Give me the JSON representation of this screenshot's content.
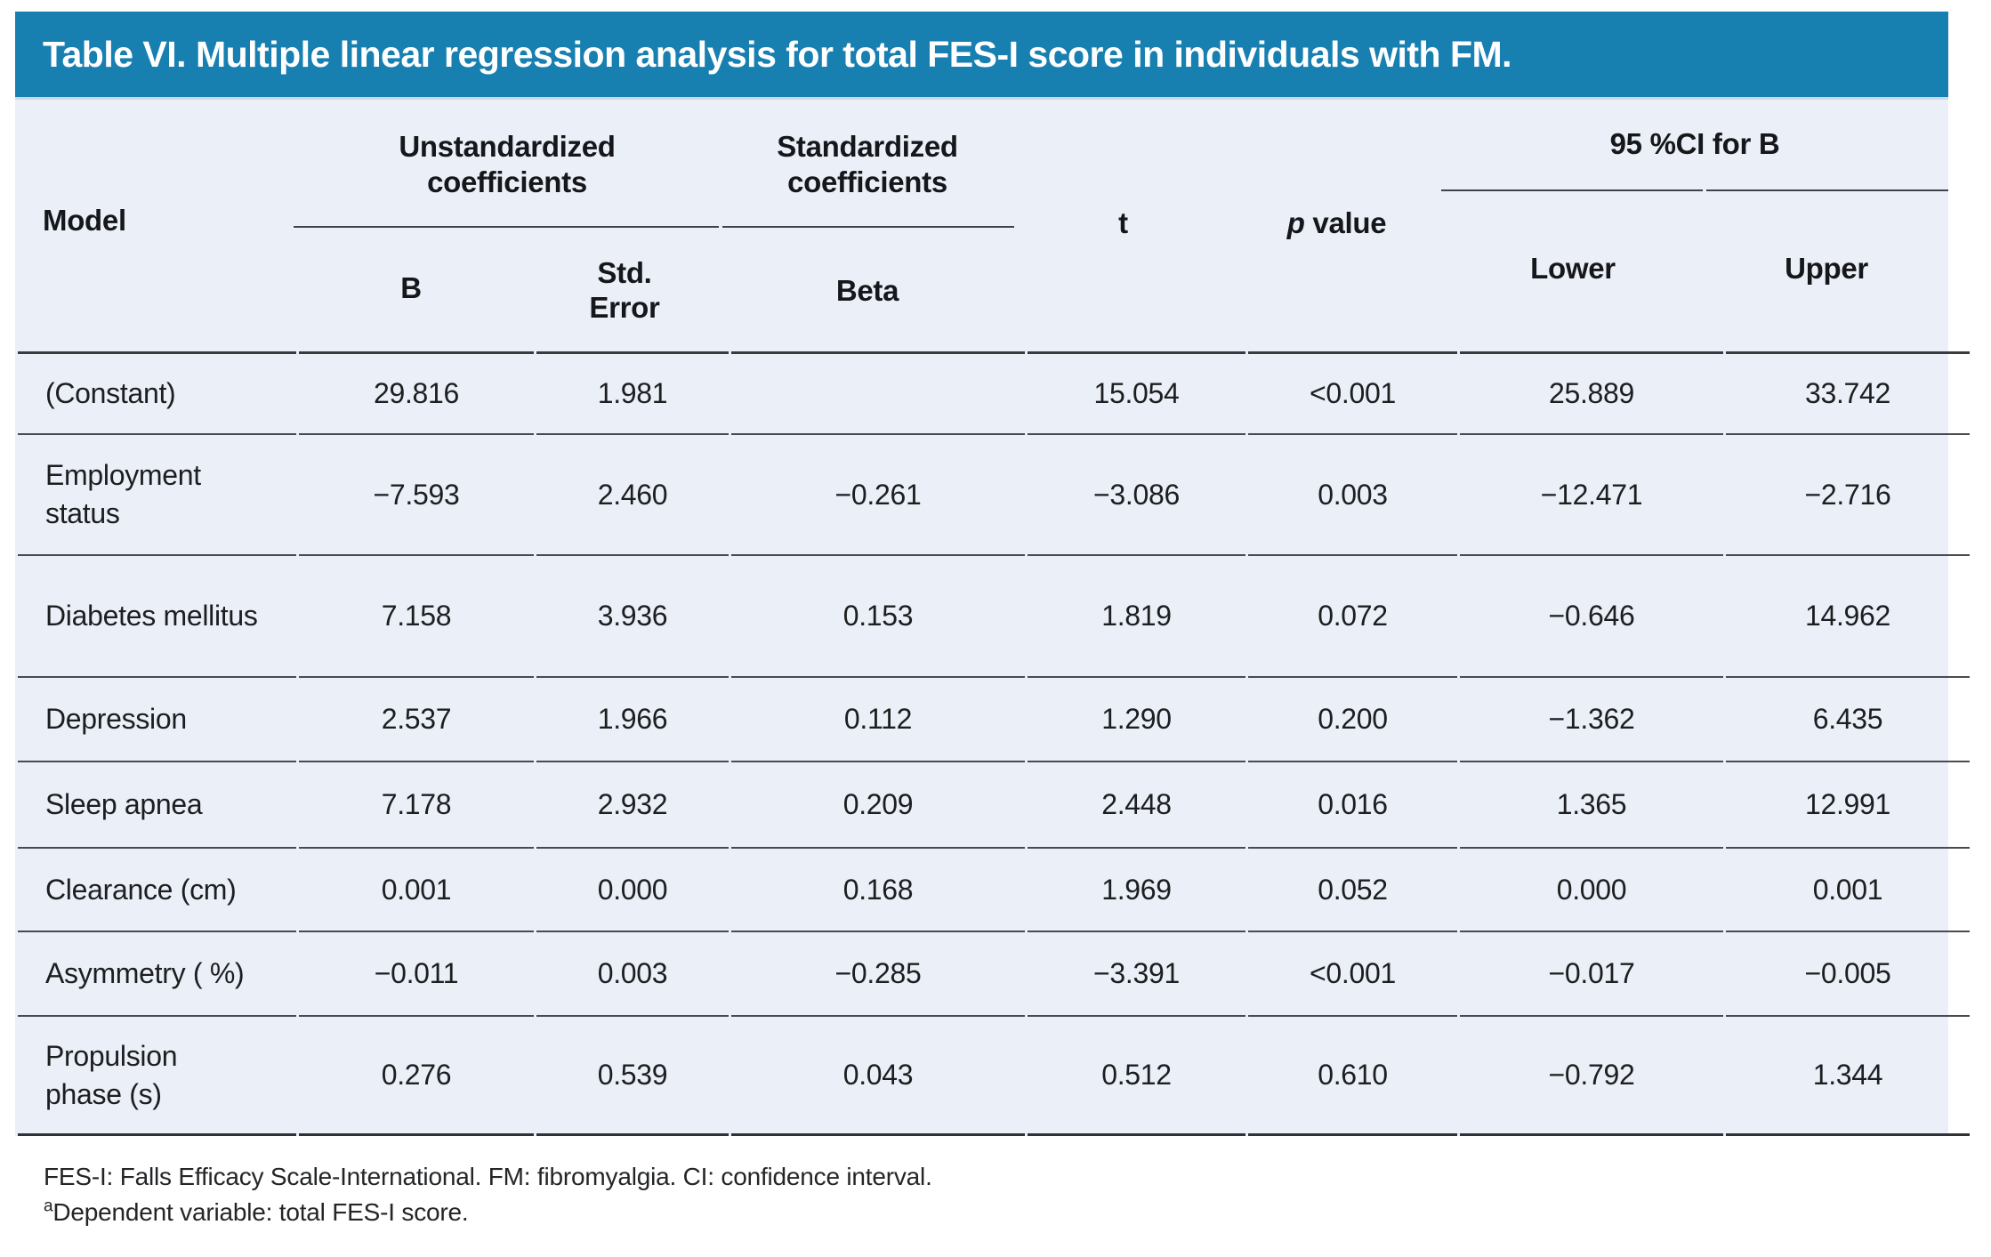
{
  "title": "Table VI. Multiple linear regression analysis for total FES-I score in individuals with FM.",
  "header": {
    "model": "Model",
    "group_unstandardized": "Unstandardized coefficients",
    "group_standardized": "Standardized coefficients",
    "group_ci": "95 %CI for B",
    "col_b": "B",
    "col_std_error": "Std. Error",
    "col_beta": "Beta",
    "col_t": "t",
    "p_italic": "p",
    "p_rest": " value",
    "col_lower": "Lower",
    "col_upper": "Upper"
  },
  "rows": [
    {
      "model": "(Constant)",
      "b": "29.816",
      "std_error": "1.981",
      "beta": "",
      "t": "15.054",
      "p": "<0.001",
      "lower": "25.889",
      "upper": "33.742"
    },
    {
      "model": "Employment status",
      "b": "−7.593",
      "std_error": "2.460",
      "beta": "−0.261",
      "t": "−3.086",
      "p": "0.003",
      "lower": "−12.471",
      "upper": "−2.716"
    },
    {
      "model": "Diabetes mellitus",
      "b": "7.158",
      "std_error": "3.936",
      "beta": "0.153",
      "t": "1.819",
      "p": "0.072",
      "lower": "−0.646",
      "upper": "14.962"
    },
    {
      "model": "Depression",
      "b": "2.537",
      "std_error": "1.966",
      "beta": "0.112",
      "t": "1.290",
      "p": "0.200",
      "lower": "−1.362",
      "upper": "6.435"
    },
    {
      "model": "Sleep apnea",
      "b": "7.178",
      "std_error": "2.932",
      "beta": "0.209",
      "t": "2.448",
      "p": "0.016",
      "lower": "1.365",
      "upper": "12.991"
    },
    {
      "model": "Clearance (cm)",
      "b": "0.001",
      "std_error": "0.000",
      "beta": "0.168",
      "t": "1.969",
      "p": "0.052",
      "lower": "0.000",
      "upper": "0.001"
    },
    {
      "model": "Asymmetry ( %)",
      "b": "−0.011",
      "std_error": "0.003",
      "beta": "−0.285",
      "t": "−3.391",
      "p": "<0.001",
      "lower": "−0.017",
      "upper": "−0.005"
    },
    {
      "model": "Propulsion phase (s)",
      "b": "0.276",
      "std_error": "0.539",
      "beta": "0.043",
      "t": "0.512",
      "p": "0.610",
      "lower": "−0.792",
      "upper": "1.344"
    }
  ],
  "footnotes": {
    "line1": "FES-I: Falls Efficacy Scale-International. FM: fibromyalgia. CI: confidence interval.",
    "line2_sup": "a",
    "line2": "Dependent variable: total FES-I score."
  },
  "colors": {
    "header_bar": "#187fb1",
    "table_bg": "#ebeff7",
    "rule": "#3f4347"
  }
}
